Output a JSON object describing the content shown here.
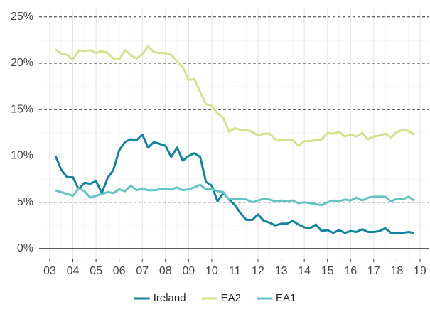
{
  "chart_data": {
    "type": "line",
    "x": [
      2003.25,
      2003.5,
      2003.75,
      2004,
      2004.25,
      2004.5,
      2004.75,
      2005,
      2005.25,
      2005.5,
      2005.75,
      2006,
      2006.25,
      2006.5,
      2006.75,
      2007,
      2007.25,
      2007.5,
      2007.75,
      2008,
      2008.25,
      2008.5,
      2008.75,
      2009,
      2009.25,
      2009.5,
      2009.75,
      2010,
      2010.25,
      2010.5,
      2010.75,
      2011,
      2011.25,
      2011.5,
      2011.75,
      2012,
      2012.25,
      2012.5,
      2012.75,
      2013,
      2013.25,
      2013.5,
      2013.75,
      2014,
      2014.25,
      2014.5,
      2014.75,
      2015,
      2015.25,
      2015.5,
      2015.75,
      2016,
      2016.25,
      2016.5,
      2016.75,
      2017,
      2017.25,
      2017.5,
      2017.75,
      2018,
      2018.25,
      2018.5,
      2018.75
    ],
    "series": [
      {
        "name": "Ireland",
        "color": "#10849f",
        "values": [
          10.0,
          8.5,
          7.7,
          7.7,
          6.4,
          7.1,
          7.0,
          7.3,
          6.0,
          7.6,
          8.5,
          10.6,
          11.5,
          11.8,
          11.7,
          12.3,
          10.9,
          11.5,
          11.3,
          11.1,
          9.9,
          10.9,
          9.5,
          10.0,
          10.3,
          9.9,
          7.2,
          6.8,
          5.1,
          6.0,
          5.3,
          4.7,
          3.8,
          3.1,
          3.1,
          3.7,
          3.0,
          2.8,
          2.5,
          2.7,
          2.7,
          3.0,
          2.6,
          2.3,
          2.2,
          2.6,
          1.9,
          2.0,
          1.7,
          2.0,
          1.7,
          1.9,
          1.8,
          2.1,
          1.8,
          1.8,
          1.9,
          2.2,
          1.7,
          1.7,
          1.7,
          1.8,
          1.7
        ]
      },
      {
        "name": "EA2",
        "color": "#d5e18c",
        "values": [
          21.5,
          21.0,
          20.9,
          20.4,
          21.4,
          21.3,
          21.4,
          21.1,
          21.3,
          21.1,
          20.5,
          20.4,
          21.4,
          20.9,
          20.5,
          21.0,
          21.8,
          21.2,
          21.1,
          21.1,
          20.9,
          20.2,
          19.6,
          18.2,
          18.3,
          16.9,
          15.6,
          15.4,
          14.6,
          14.1,
          12.6,
          13.0,
          12.8,
          12.8,
          12.6,
          12.2,
          12.4,
          12.4,
          11.8,
          11.7,
          11.7,
          11.7,
          11.1,
          11.6,
          11.6,
          11.7,
          11.8,
          12.5,
          12.4,
          12.6,
          12.1,
          12.3,
          12.1,
          12.5,
          11.8,
          12.1,
          12.2,
          12.4,
          12.0,
          12.6,
          12.8,
          12.7,
          12.3
        ]
      },
      {
        "name": "EA1",
        "color": "#62c5c1",
        "values": [
          6.3,
          6.1,
          5.9,
          5.7,
          6.5,
          6.2,
          5.5,
          5.7,
          5.9,
          6.1,
          6.0,
          6.4,
          6.2,
          6.8,
          6.3,
          6.5,
          6.3,
          6.3,
          6.4,
          6.5,
          6.4,
          6.6,
          6.3,
          6.4,
          6.6,
          6.9,
          6.4,
          6.4,
          6.2,
          6.1,
          5.3,
          5.4,
          5.4,
          5.3,
          5.0,
          5.2,
          5.4,
          5.3,
          5.1,
          5.2,
          5.1,
          5.2,
          4.9,
          5.0,
          4.9,
          4.8,
          4.7,
          5.0,
          5.2,
          5.1,
          5.3,
          5.2,
          5.5,
          5.2,
          5.5,
          5.6,
          5.6,
          5.6,
          5.1,
          5.4,
          5.3,
          5.6,
          5.2
        ]
      }
    ],
    "xlim": [
      2002.54,
      2019.37
    ],
    "xticks": [
      {
        "value": 2003,
        "label": "03"
      },
      {
        "value": 2004,
        "label": "04"
      },
      {
        "value": 2005,
        "label": "05"
      },
      {
        "value": 2006,
        "label": "06"
      },
      {
        "value": 2007,
        "label": "07"
      },
      {
        "value": 2008,
        "label": "08"
      },
      {
        "value": 2009,
        "label": "09"
      },
      {
        "value": 2010,
        "label": "10"
      },
      {
        "value": 2011,
        "label": "11"
      },
      {
        "value": 2012,
        "label": "12"
      },
      {
        "value": 2013,
        "label": "13"
      },
      {
        "value": 2014,
        "label": "14"
      },
      {
        "value": 2015,
        "label": "15"
      },
      {
        "value": 2016,
        "label": "16"
      },
      {
        "value": 2017,
        "label": "17"
      },
      {
        "value": 2018,
        "label": "18"
      },
      {
        "value": 2019,
        "label": "19"
      }
    ],
    "ylim": [
      -1.15,
      25.9
    ],
    "yticks": [
      {
        "value": 0,
        "label": "0%"
      },
      {
        "value": 5,
        "label": "5%"
      },
      {
        "value": 10,
        "label": "10%"
      },
      {
        "value": 15,
        "label": "15%"
      },
      {
        "value": 20,
        "label": "20%"
      },
      {
        "value": 25,
        "label": "25%"
      }
    ],
    "grid": true,
    "legend": "bottom"
  }
}
